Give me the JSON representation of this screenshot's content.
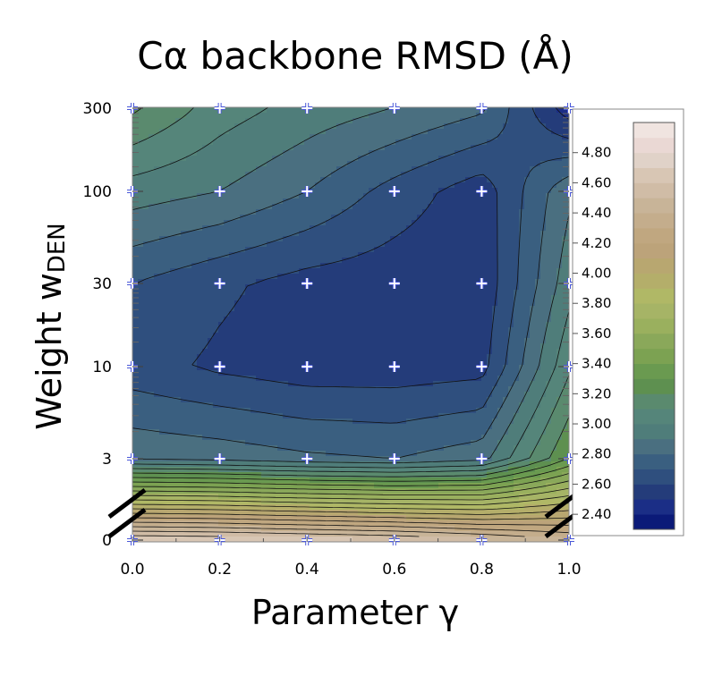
{
  "chart_data": {
    "type": "contour",
    "title": "Cα backbone RMSD (Å)",
    "xlabel": "Parameter γ",
    "ylabel_main": "Weight w",
    "ylabel_sub": "DEN",
    "x_ticks": [
      "0.0",
      "0.2",
      "0.4",
      "0.6",
      "0.8",
      "1.0"
    ],
    "y_ticks": [
      "0",
      "3",
      "10",
      "30",
      "100",
      "300"
    ],
    "xlim": [
      0.0,
      1.0
    ],
    "y_scale": "log with broken axis between 0 and 3",
    "grid_points": {
      "x": [
        0.0,
        0.2,
        0.4,
        0.6,
        0.8,
        1.0
      ],
      "y": [
        0,
        3,
        10,
        30,
        100,
        300
      ]
    },
    "rmsd_grid": [
      [
        4.7,
        4.68,
        4.64,
        4.6,
        4.52,
        4.4
      ],
      [
        2.88,
        2.86,
        2.82,
        2.8,
        2.86,
        3.3
      ],
      [
        2.64,
        2.58,
        2.54,
        2.54,
        2.56,
        3.08
      ],
      [
        2.7,
        2.62,
        2.56,
        2.54,
        2.52,
        2.96
      ],
      [
        2.95,
        2.9,
        2.8,
        2.66,
        2.54,
        2.88
      ],
      [
        3.22,
        3.05,
        2.96,
        2.9,
        2.82,
        2.44
      ]
    ],
    "colorbar": {
      "labels": [
        "4.80",
        "4.60",
        "4.40",
        "4.20",
        "4.00",
        "3.80",
        "3.60",
        "3.40",
        "3.20",
        "3.00",
        "2.80",
        "2.60",
        "2.40"
      ],
      "levels": [
        2.3,
        2.4,
        2.5,
        2.6,
        2.7,
        2.8,
        2.9,
        3.0,
        3.1,
        3.2,
        3.3,
        3.4,
        3.5,
        3.6,
        3.7,
        3.8,
        3.9,
        4.0,
        4.1,
        4.2,
        4.3,
        4.4,
        4.5,
        4.6,
        4.7,
        4.8,
        4.9,
        5.0
      ],
      "colors": [
        "#0b1a78",
        "#1b2e86",
        "#243c7a",
        "#2f4f7e",
        "#3a5f80",
        "#4a6f80",
        "#4f7d7a",
        "#55857a",
        "#5a8a6e",
        "#5e9050",
        "#6a9a50",
        "#7ca252",
        "#8aa85a",
        "#9ab05e",
        "#a6b466",
        "#b0b866",
        "#b4ae6a",
        "#b8a770",
        "#bca37a",
        "#c0a780",
        "#c4ad8c",
        "#c8b498",
        "#d0bca6",
        "#d8c6b4",
        "#e0d2c8",
        "#ead8d4",
        "#f0e4e0"
      ]
    }
  }
}
